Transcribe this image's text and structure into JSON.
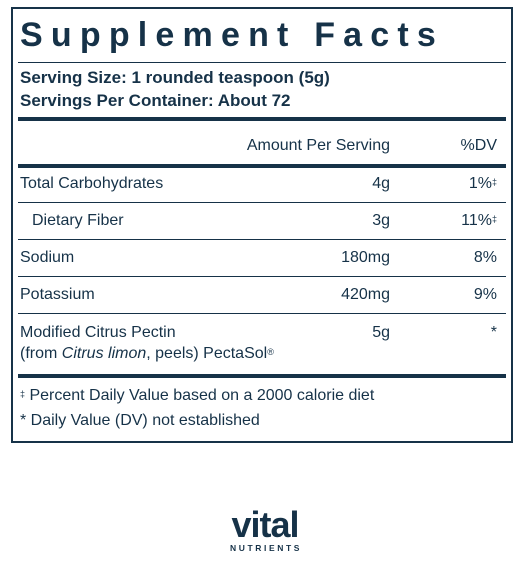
{
  "panel": {
    "title": "Supplement Facts",
    "serving_size": "Serving Size: 1 rounded teaspoon (5g)",
    "servings_per_container": "Servings Per Container: About 72",
    "header": {
      "amount_per_serving": "Amount Per Serving",
      "dv": "%DV"
    },
    "rows": [
      {
        "name": "Total Carbohydrates",
        "amount": "4g",
        "dv": "1%",
        "dv_mark": "‡"
      },
      {
        "name": "Dietary Fiber",
        "amount": "3g",
        "dv": "11%",
        "dv_mark": "‡"
      },
      {
        "name": "Sodium",
        "amount": "180mg",
        "dv": "8%"
      },
      {
        "name": "Potassium",
        "amount": "420mg",
        "dv": "9%"
      },
      {
        "name": "Modified Citrus Pectin",
        "name_line2_a": "(from ",
        "name_line2_italic": "Citrus limon",
        "name_line2_b": ", peels) PectaSol",
        "name_line2_mark": "®",
        "amount": "5g",
        "dv": "*"
      }
    ],
    "footnotes": [
      {
        "mark": "‡",
        "text": " Percent Daily Value based on a 2000 calorie diet"
      },
      {
        "text": "* Daily Value (DV) not established"
      }
    ]
  },
  "brand": {
    "name": "vital",
    "subtitle": "NUTRIENTS"
  },
  "colors": {
    "ink": "#163248",
    "background": "#ffffff"
  }
}
